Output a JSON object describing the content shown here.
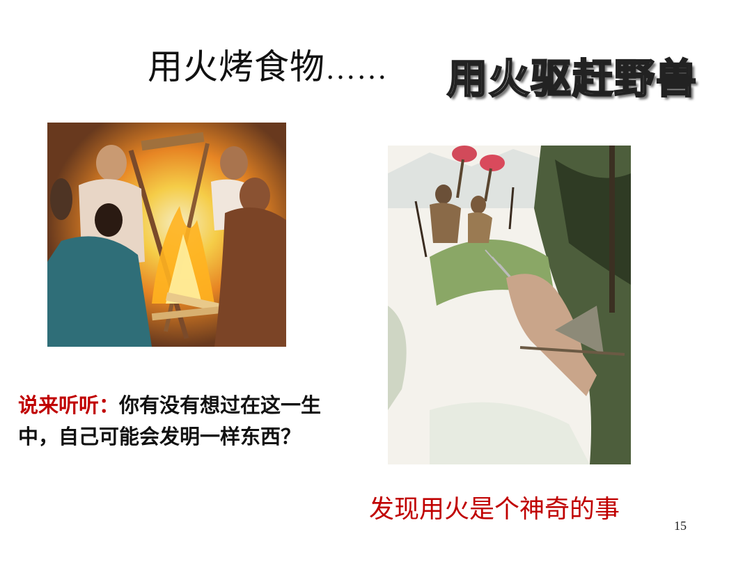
{
  "slide": {
    "title_part1": "用火烤食物",
    "title_dots": "……",
    "title_outline": "用火驱赶野兽",
    "prompt_lead": "说来听听：",
    "prompt_body": "你有没有想过在这一生中，自己可能会发明一样东西？",
    "caption": "发现用火是个神奇的事",
    "page_number": "15"
  },
  "colors": {
    "accent_red": "#c00000",
    "text": "#111111"
  },
  "images": {
    "left_icon": "cavemen-fire-illustration",
    "right_icon": "hunters-torches-beast-illustration"
  }
}
